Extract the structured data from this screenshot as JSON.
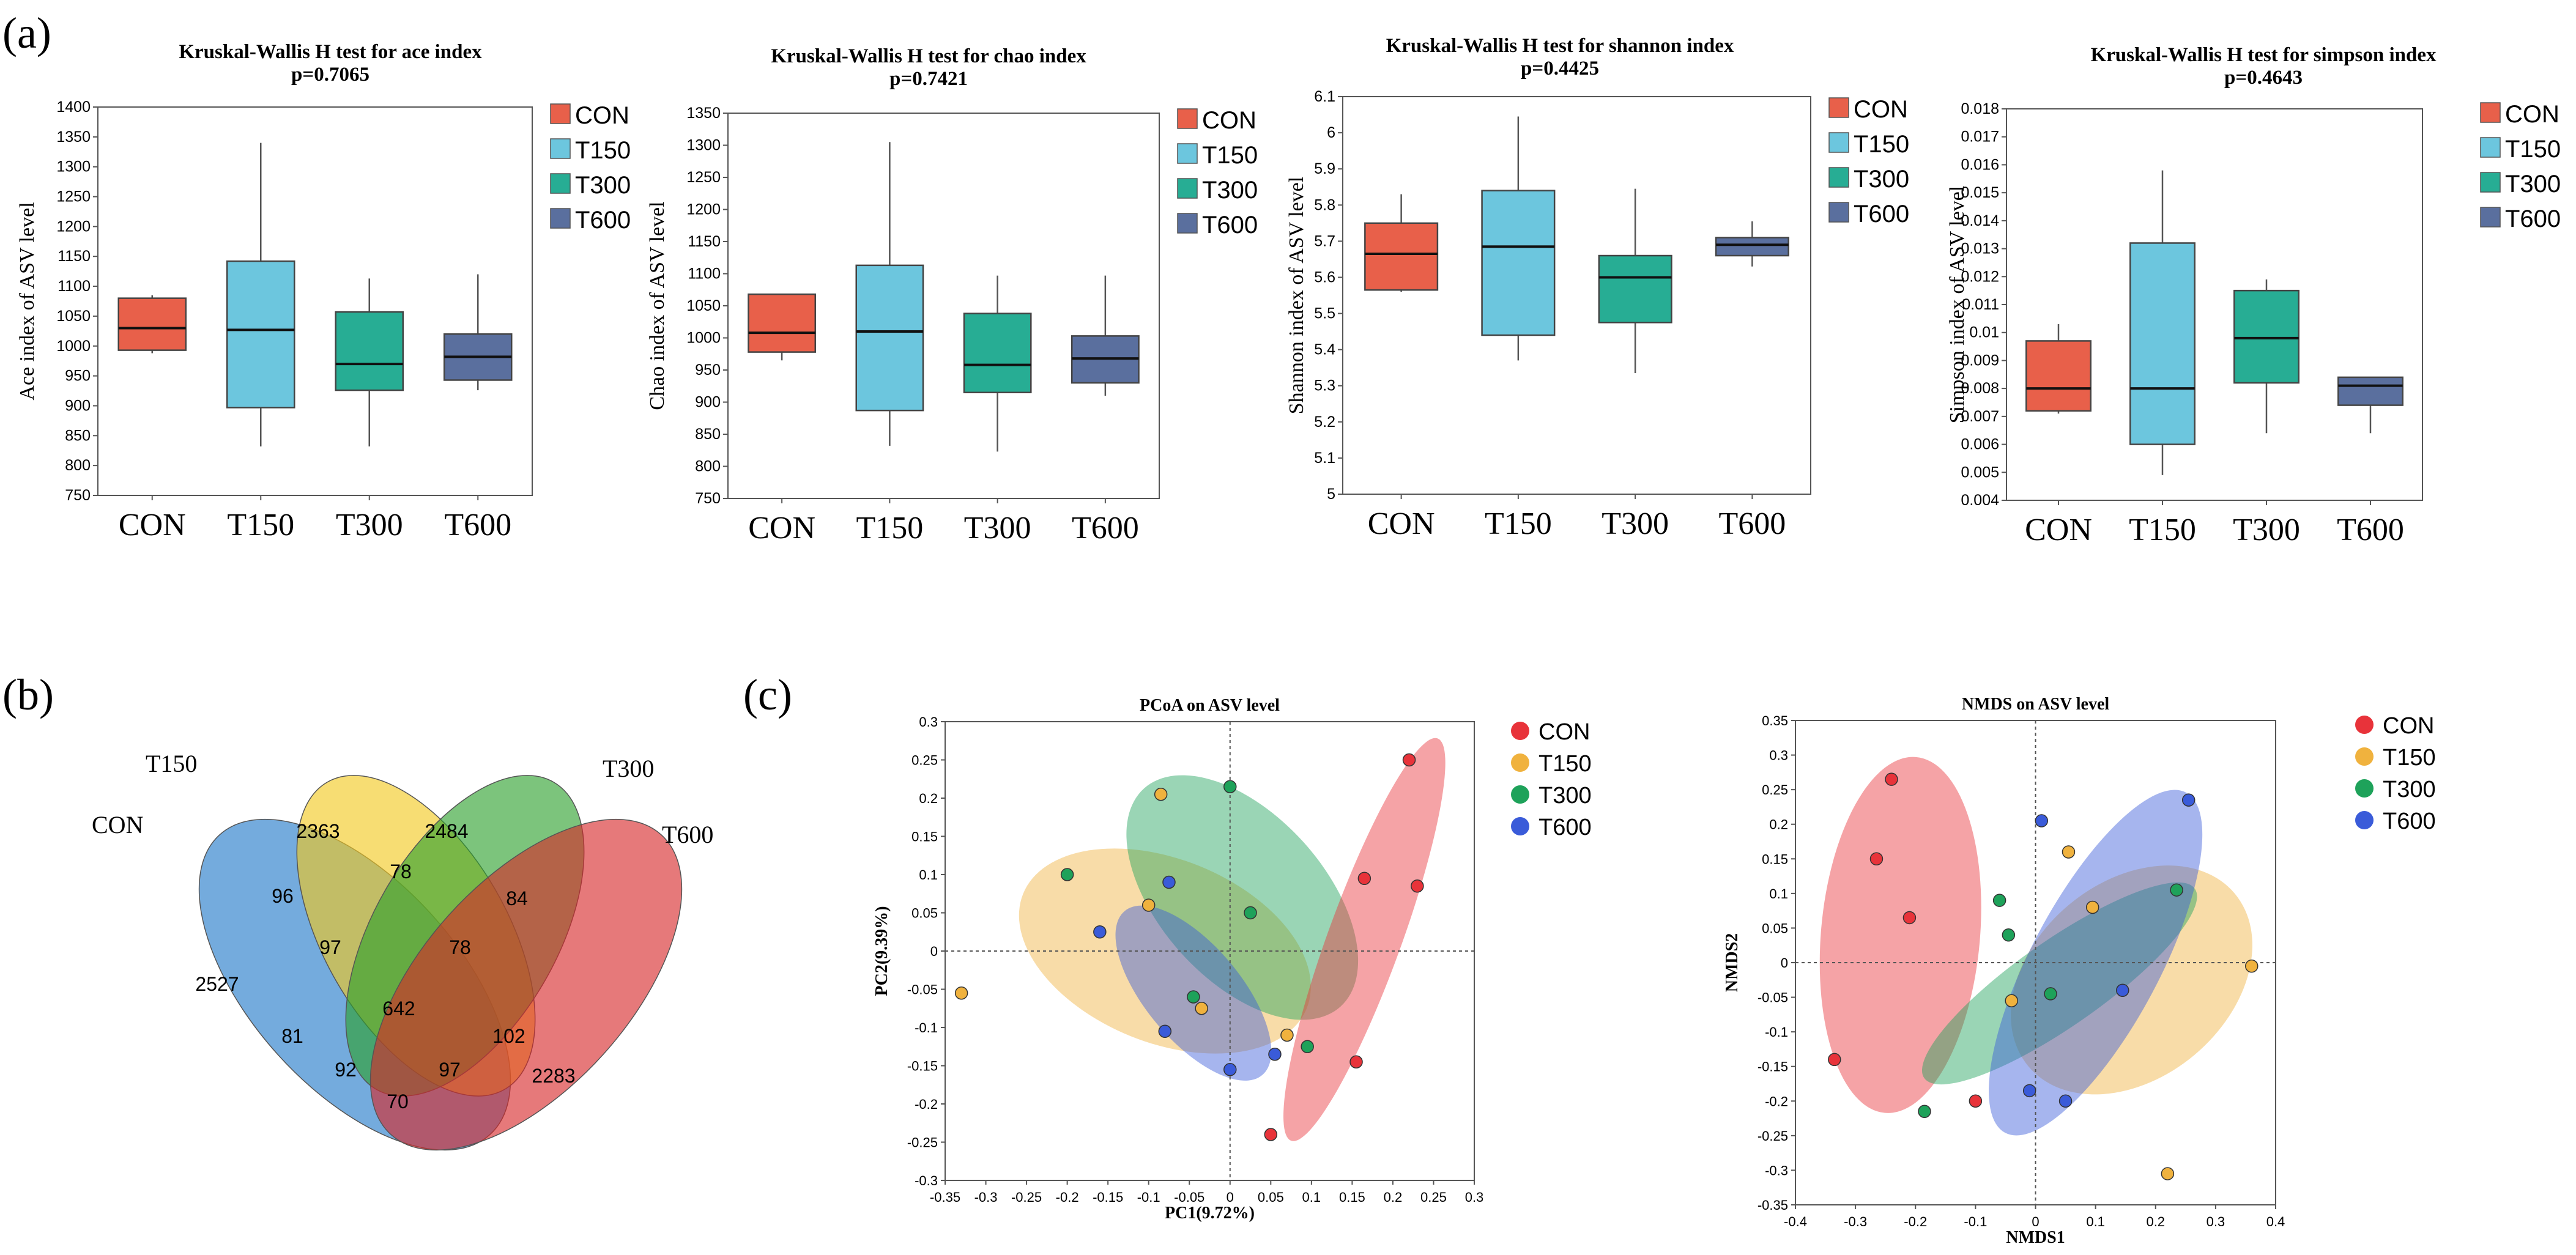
{
  "panel_labels": {
    "a": "(a)",
    "b": "(b)",
    "c": "(c)"
  },
  "colors": {
    "CON": "#e8604a",
    "T150": "#6cc6de",
    "T300": "#27ad94",
    "T600": "#5a6f9e",
    "venn_CON": "#1f78c8",
    "venn_T150": "#f2c81d",
    "venn_T300": "#2ca02c",
    "venn_T600": "#d62728",
    "pt_CON": "#e8333a",
    "pt_T150": "#f0b23e",
    "pt_T300": "#1ea25a",
    "pt_T600": "#3a5bd9"
  },
  "groups": [
    "CON",
    "T150",
    "T300",
    "T600"
  ],
  "chart_data": [
    {
      "type": "box",
      "title": "Kruskal-Wallis H test for ace index",
      "subtitle": "p=0.7065",
      "ylabel": "Ace index of ASV level",
      "ylim": [
        750,
        1400
      ],
      "yticks": [
        750,
        800,
        850,
        900,
        950,
        1000,
        1050,
        1100,
        1150,
        1200,
        1250,
        1300,
        1350,
        1400
      ],
      "categories": [
        "CON",
        "T150",
        "T300",
        "T600"
      ],
      "boxes": [
        {
          "min": 988,
          "q1": 993,
          "median": 1030,
          "q3": 1080,
          "max": 1085
        },
        {
          "min": 832,
          "q1": 897,
          "median": 1027,
          "q3": 1142,
          "max": 1340
        },
        {
          "min": 832,
          "q1": 926,
          "median": 970,
          "q3": 1057,
          "max": 1113
        },
        {
          "min": 926,
          "q1": 943,
          "median": 982,
          "q3": 1020,
          "max": 1120
        }
      ]
    },
    {
      "type": "box",
      "title": "Kruskal-Wallis H test for chao index",
      "subtitle": "p=0.7421",
      "ylabel": "Chao index of ASV level",
      "ylim": [
        750,
        1350
      ],
      "yticks": [
        750,
        800,
        850,
        900,
        950,
        1000,
        1050,
        1100,
        1150,
        1200,
        1250,
        1300,
        1350
      ],
      "categories": [
        "CON",
        "T150",
        "T300",
        "T600"
      ],
      "boxes": [
        {
          "min": 965,
          "q1": 978,
          "median": 1008,
          "q3": 1068,
          "max": 1068
        },
        {
          "min": 832,
          "q1": 887,
          "median": 1010,
          "q3": 1113,
          "max": 1305
        },
        {
          "min": 823,
          "q1": 915,
          "median": 958,
          "q3": 1038,
          "max": 1097
        },
        {
          "min": 910,
          "q1": 930,
          "median": 968,
          "q3": 1003,
          "max": 1097
        }
      ]
    },
    {
      "type": "box",
      "title": "Kruskal-Wallis H test for shannon index",
      "subtitle": "p=0.4425",
      "ylabel": "Shannon index of ASV level",
      "ylim": [
        5,
        6.1
      ],
      "yticks": [
        5,
        5.1,
        5.2,
        5.3,
        5.4,
        5.5,
        5.6,
        5.7,
        5.8,
        5.9,
        6,
        6.1
      ],
      "categories": [
        "CON",
        "T150",
        "T300",
        "T600"
      ],
      "boxes": [
        {
          "min": 5.56,
          "q1": 5.565,
          "median": 5.665,
          "q3": 5.75,
          "max": 5.83
        },
        {
          "min": 5.37,
          "q1": 5.44,
          "median": 5.685,
          "q3": 5.84,
          "max": 6.045
        },
        {
          "min": 5.335,
          "q1": 5.475,
          "median": 5.6,
          "q3": 5.66,
          "max": 5.845
        },
        {
          "min": 5.63,
          "q1": 5.66,
          "median": 5.69,
          "q3": 5.71,
          "max": 5.755
        }
      ]
    },
    {
      "type": "box",
      "title": "Kruskal-Wallis H test for simpson index",
      "subtitle": "p=0.4643",
      "ylabel": "Simpson index of ASV level",
      "ylim": [
        0.004,
        0.018
      ],
      "yticks": [
        0.004,
        0.005,
        0.006,
        0.007,
        0.008,
        0.009,
        0.01,
        0.011,
        0.012,
        0.013,
        0.014,
        0.015,
        0.016,
        0.017,
        0.018
      ],
      "categories": [
        "CON",
        "T150",
        "T300",
        "T600"
      ],
      "boxes": [
        {
          "min": 0.0071,
          "q1": 0.0072,
          "median": 0.008,
          "q3": 0.0097,
          "max": 0.0103
        },
        {
          "min": 0.0049,
          "q1": 0.006,
          "median": 0.008,
          "q3": 0.0132,
          "max": 0.0158
        },
        {
          "min": 0.0064,
          "q1": 0.0082,
          "median": 0.0098,
          "q3": 0.0115,
          "max": 0.0119
        },
        {
          "min": 0.0064,
          "q1": 0.0074,
          "median": 0.0081,
          "q3": 0.0084,
          "max": 0.0084
        }
      ]
    },
    {
      "type": "venn",
      "sets": [
        "CON",
        "T150",
        "T300",
        "T600"
      ],
      "counts": [
        "2527",
        "2363",
        "2484",
        "2283",
        "96",
        "78",
        "84",
        "97",
        "78",
        "642",
        "81",
        "102",
        "92",
        "97",
        "70"
      ]
    },
    {
      "type": "scatter",
      "title": "PCoA on ASV level",
      "xlabel": "PC1(9.72%)",
      "ylabel": "PC2(9.39%)",
      "xlim": [
        -0.35,
        0.3
      ],
      "ylim": [
        -0.3,
        0.3
      ],
      "xticks": [
        "-0.35",
        "-0.3",
        "-0.25",
        "-0.2",
        "-0.15",
        "-0.1",
        "-0.05",
        "0",
        "0.05",
        "0.1",
        "0.15",
        "0.2",
        "0.25",
        "0.3"
      ],
      "yticks": [
        "-0.3",
        "-0.25",
        "-0.2",
        "-0.15",
        "-0.1",
        "-0.05",
        "0",
        "0.05",
        "0.1",
        "0.15",
        "0.2",
        "0.25",
        "0.3"
      ],
      "series": [
        {
          "name": "CON",
          "points": [
            [
              0.22,
              0.25
            ],
            [
              0.165,
              0.095
            ],
            [
              0.23,
              0.085
            ],
            [
              0.155,
              -0.145
            ],
            [
              0.05,
              -0.24
            ]
          ]
        },
        {
          "name": "T150",
          "points": [
            [
              -0.33,
              -0.055
            ],
            [
              -0.085,
              0.205
            ],
            [
              -0.1,
              0.06
            ],
            [
              -0.035,
              -0.075
            ],
            [
              0.07,
              -0.11
            ]
          ]
        },
        {
          "name": "T300",
          "points": [
            [
              -0.2,
              0.1
            ],
            [
              0,
              0.215
            ],
            [
              0.025,
              0.05
            ],
            [
              -0.045,
              -0.06
            ],
            [
              0.095,
              -0.125
            ]
          ]
        },
        {
          "name": "T600",
          "points": [
            [
              -0.16,
              0.025
            ],
            [
              -0.075,
              0.09
            ],
            [
              -0.08,
              -0.105
            ],
            [
              0,
              -0.155
            ],
            [
              0.055,
              -0.135
            ]
          ]
        }
      ]
    },
    {
      "type": "scatter",
      "title": "NMDS on ASV level",
      "xlabel": "NMDS1",
      "ylabel": "NMDS2",
      "xlim": [
        -0.4,
        0.4
      ],
      "ylim": [
        -0.35,
        0.35
      ],
      "xticks": [
        "-0.4",
        "-0.3",
        "-0.2",
        "-0.1",
        "0",
        "0.1",
        "0.2",
        "0.3",
        "0.4"
      ],
      "yticks": [
        "-0.35",
        "-0.3",
        "-0.25",
        "-0.2",
        "-0.15",
        "-0.1",
        "-0.05",
        "0",
        "0.05",
        "0.1",
        "0.15",
        "0.2",
        "0.25",
        "0.3",
        "0.35"
      ],
      "series": [
        {
          "name": "CON",
          "points": [
            [
              -0.24,
              0.265
            ],
            [
              -0.265,
              0.15
            ],
            [
              -0.21,
              0.065
            ],
            [
              -0.335,
              -0.14
            ],
            [
              -0.1,
              -0.2
            ]
          ]
        },
        {
          "name": "T150",
          "points": [
            [
              0.055,
              0.16
            ],
            [
              0.095,
              0.08
            ],
            [
              -0.04,
              -0.055
            ],
            [
              0.36,
              -0.005
            ],
            [
              0.22,
              -0.305
            ]
          ]
        },
        {
          "name": "T300",
          "points": [
            [
              -0.06,
              0.09
            ],
            [
              -0.045,
              0.04
            ],
            [
              0.025,
              -0.045
            ],
            [
              0.235,
              0.105
            ],
            [
              -0.185,
              -0.215
            ]
          ]
        },
        {
          "name": "T600",
          "points": [
            [
              0.01,
              0.205
            ],
            [
              0.255,
              0.235
            ],
            [
              0.145,
              -0.04
            ],
            [
              -0.01,
              -0.185
            ],
            [
              0.05,
              -0.2
            ]
          ]
        }
      ]
    }
  ]
}
